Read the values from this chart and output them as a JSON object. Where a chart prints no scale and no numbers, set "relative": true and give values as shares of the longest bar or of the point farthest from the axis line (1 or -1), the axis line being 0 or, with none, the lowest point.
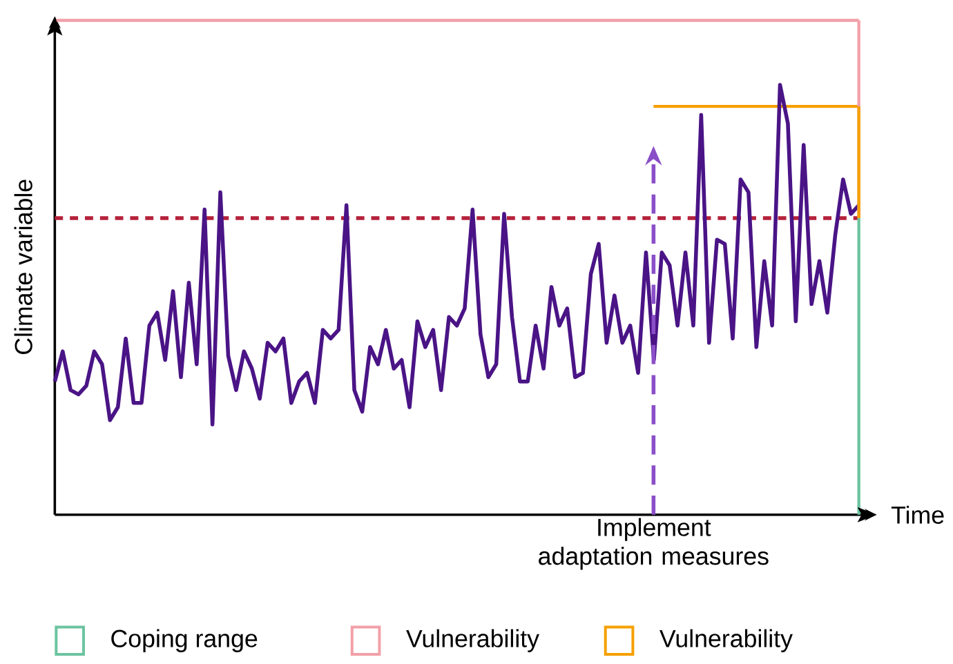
{
  "chart_data": {
    "type": "line",
    "relative": true,
    "xlabel": "Time",
    "ylabel": "Climate variable",
    "categories": [
      null,
      null,
      null,
      null,
      null,
      null,
      null,
      null,
      null,
      null,
      null,
      null,
      null,
      null,
      null,
      null,
      null,
      null,
      null,
      null,
      null,
      null,
      null,
      null,
      null,
      null,
      null,
      null,
      null,
      null,
      null,
      null,
      null,
      null,
      null,
      null,
      null,
      null,
      null,
      null,
      null,
      null,
      null,
      null,
      null,
      null,
      null,
      null,
      null,
      null,
      null,
      null,
      null,
      null,
      null,
      null,
      null,
      null,
      null,
      null,
      null,
      null,
      null,
      null,
      null,
      null,
      null,
      null,
      null,
      null,
      null,
      null,
      null,
      null,
      null,
      null,
      null,
      null,
      null,
      null,
      null,
      null,
      null,
      null,
      null,
      null,
      null,
      null,
      null,
      null,
      null,
      null,
      null,
      null,
      null,
      null,
      null,
      null,
      null,
      null,
      null,
      null,
      null
    ],
    "series": [
      {
        "color": "#4a1486",
        "values": [
          0.31,
          0.38,
          0.29,
          0.28,
          0.3,
          0.38,
          0.35,
          0.22,
          0.25,
          0.41,
          0.26,
          0.26,
          0.44,
          0.47,
          0.36,
          0.52,
          0.32,
          0.54,
          0.35,
          0.71,
          0.21,
          0.75,
          0.37,
          0.29,
          0.38,
          0.34,
          0.27,
          0.4,
          0.38,
          0.41,
          0.26,
          0.31,
          0.33,
          0.26,
          0.43,
          0.41,
          0.43,
          0.72,
          0.29,
          0.24,
          0.39,
          0.35,
          0.43,
          0.34,
          0.36,
          0.25,
          0.45,
          0.39,
          0.43,
          0.29,
          0.46,
          0.44,
          0.48,
          0.71,
          0.42,
          0.32,
          0.35,
          0.7,
          0.46,
          0.31,
          0.31,
          0.44,
          0.34,
          0.53,
          0.44,
          0.48,
          0.32,
          0.33,
          0.56,
          0.63,
          0.4,
          0.51,
          0.4,
          0.44,
          0.33,
          0.61,
          0.36,
          0.61,
          0.58,
          0.44,
          0.61,
          0.44,
          0.93,
          0.4,
          0.64,
          0.63,
          0.41,
          0.78,
          0.75,
          0.39,
          0.59,
          0.44,
          1,
          0.91,
          0.45,
          0.86,
          0.49,
          0.59,
          0.47,
          0.65,
          0.78,
          0.7,
          0.72
        ]
      }
    ],
    "ref_lines": [
      {
        "axis": "y",
        "value": 0.69,
        "color": "#b5213a",
        "line_style": "dotted"
      },
      {
        "axis": "y",
        "value": 1.15,
        "color": "#f2a0a8",
        "label": "Vulnerability"
      },
      {
        "axis": "y",
        "value": 0.95,
        "color": "#f5a000",
        "label": "Vulnerability"
      }
    ],
    "annotations": [
      "Implement adaptation measures",
      "Coping range"
    ]
  }
}
